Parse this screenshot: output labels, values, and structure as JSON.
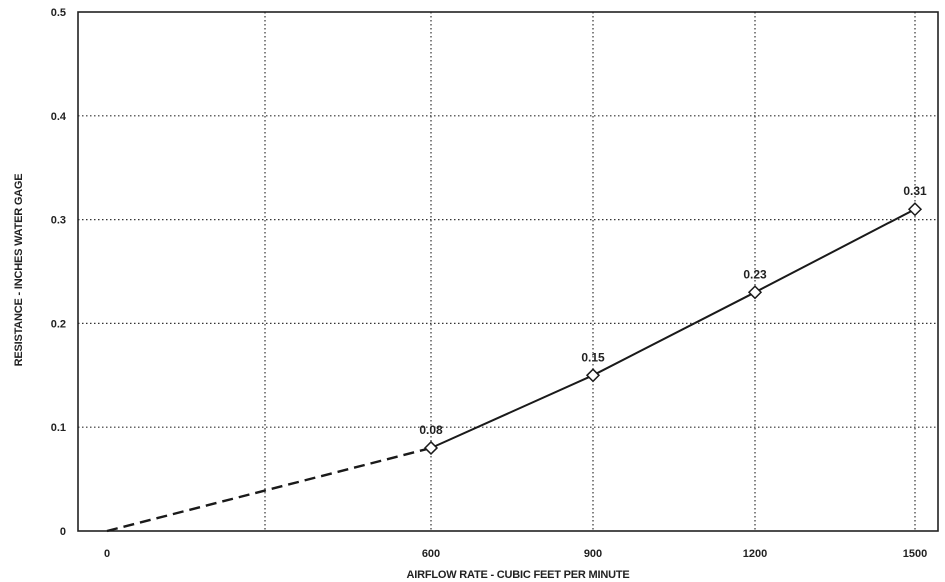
{
  "chart_data": {
    "type": "line",
    "title": "",
    "xlabel": "AIRFLOW RATE - CUBIC FEET PER MINUTE",
    "ylabel": "RESISTANCE - INCHES WATER GAGE",
    "x_tick_labels": [
      "0",
      "600",
      "900",
      "1200",
      "1500"
    ],
    "y_tick_labels": [
      "0",
      "0.1",
      "0.2",
      "0.3",
      "0.4",
      "0.5"
    ],
    "ylim": [
      0,
      0.5
    ],
    "grid": true,
    "series": [
      {
        "style": "solid",
        "marker": "diamond",
        "x": [
          600,
          900,
          1200,
          1500
        ],
        "y": [
          0.08,
          0.15,
          0.23,
          0.31
        ],
        "labels": [
          "0.08",
          "0.15",
          "0.23",
          "0.31"
        ]
      },
      {
        "style": "dashed",
        "x": [
          0,
          600
        ],
        "y": [
          0,
          0.08
        ]
      }
    ]
  }
}
